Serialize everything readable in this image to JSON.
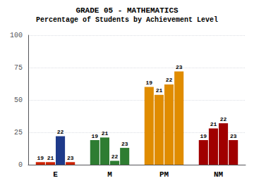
{
  "chart_data": {
    "type": "bar",
    "title": "GRADE 05 - MATHEMATICS",
    "subtitle": "Percentage of Students by Achievement Level",
    "categories": [
      "E",
      "M",
      "PM",
      "NM"
    ],
    "series": [
      {
        "name": "19",
        "values": [
          2,
          19,
          60,
          19
        ],
        "colors": [
          "#cc2200",
          "#2e7d32",
          "#e08c00",
          "#a00000"
        ]
      },
      {
        "name": "21",
        "values": [
          2,
          21,
          54,
          28
        ],
        "colors": [
          "#cc2200",
          "#2e7d32",
          "#e08c00",
          "#a00000"
        ]
      },
      {
        "name": "22",
        "values": [
          22,
          3,
          62,
          32
        ],
        "colors": [
          "#1e3a8a",
          "#2e7d32",
          "#e08c00",
          "#a00000"
        ]
      },
      {
        "name": "23",
        "values": [
          2,
          13,
          72,
          19
        ],
        "colors": [
          "#cc2200",
          "#2e7d32",
          "#e08c00",
          "#a00000"
        ]
      }
    ],
    "ylim": [
      0,
      100
    ],
    "yticks": [
      0,
      25,
      50,
      75,
      100
    ],
    "grid": true
  }
}
